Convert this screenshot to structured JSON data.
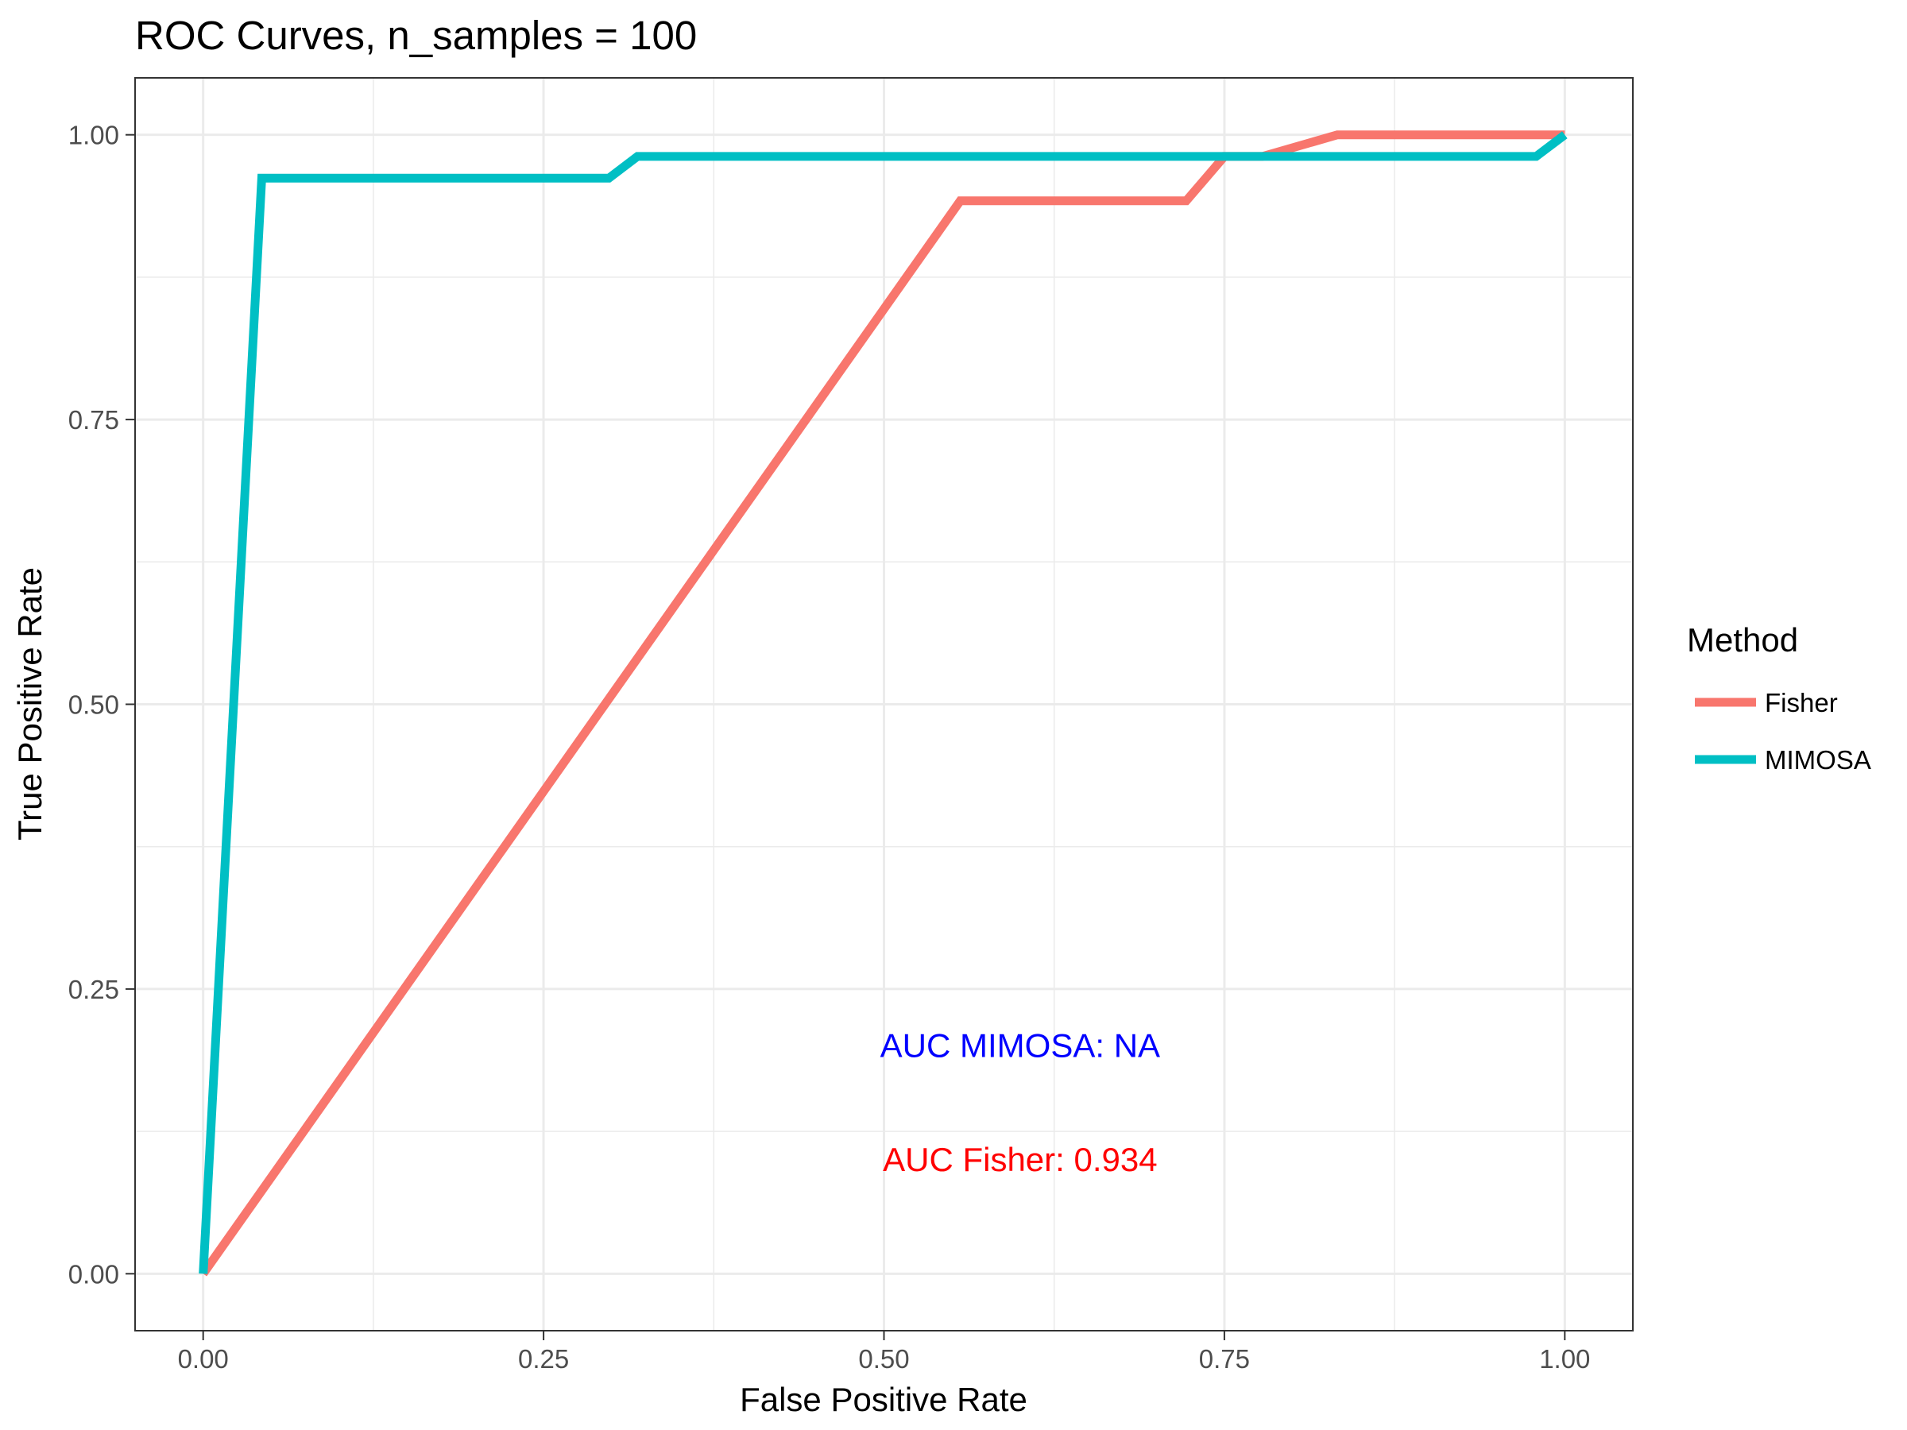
{
  "chart_data": {
    "type": "line",
    "title": "ROC Curves, n_samples = 100",
    "xlabel": "False Positive Rate",
    "ylabel": "True Positive Rate",
    "xlim": [
      -0.05,
      1.05
    ],
    "ylim": [
      -0.05,
      1.05
    ],
    "x_ticks": [
      0,
      0.25,
      0.5,
      0.75,
      1
    ],
    "y_ticks": [
      0,
      0.25,
      0.5,
      0.75,
      1
    ],
    "x_tick_labels": [
      "0.00",
      "0.25",
      "0.50",
      "0.75",
      "1.00"
    ],
    "y_tick_labels": [
      "0.00",
      "0.25",
      "0.50",
      "0.75",
      "1.00"
    ],
    "grid": true,
    "legend": {
      "title": "Method",
      "position": "right"
    },
    "series": [
      {
        "name": "Fisher",
        "color": "#F8766D",
        "x": [
          0,
          0.556,
          0.722,
          0.75,
          0.778,
          0.833,
          1.0
        ],
        "y": [
          0,
          0.942,
          0.942,
          0.981,
          0.981,
          1.0,
          1.0
        ]
      },
      {
        "name": "MIMOSA",
        "color": "#00BFC4",
        "x": [
          0,
          0.043,
          0.298,
          0.319,
          0.979,
          1.0
        ],
        "y": [
          0,
          0.962,
          0.962,
          0.981,
          0.981,
          1.0
        ]
      }
    ],
    "annotations": [
      {
        "text": "AUC MIMOSA: NA",
        "x": 0.6,
        "y": 0.2,
        "color": "#0000FF"
      },
      {
        "text": "AUC Fisher: 0.934",
        "x": 0.6,
        "y": 0.1,
        "color": "#FF0000"
      }
    ]
  }
}
